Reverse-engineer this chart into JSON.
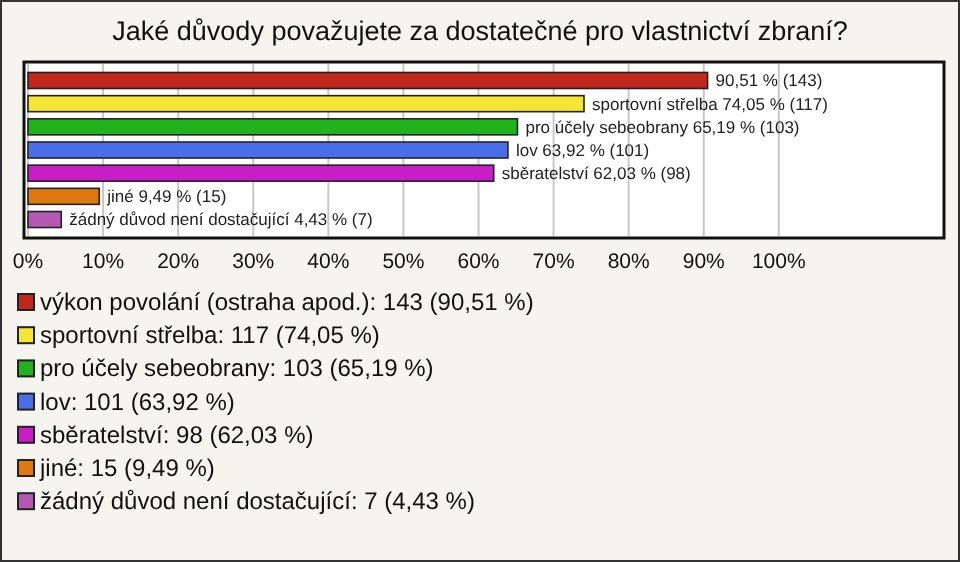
{
  "chart_data": {
    "type": "bar",
    "orientation": "horizontal",
    "title": "Jaké důvody považujete za dostatečné pro vlastnictví zbraní?",
    "categories": [
      null,
      null,
      null,
      null,
      null,
      null,
      null
    ],
    "xlim": [
      0,
      122
    ],
    "xticks": [
      {
        "value": 0,
        "label": "0%"
      },
      {
        "value": 10,
        "label": "10%"
      },
      {
        "value": 20,
        "label": "20%"
      },
      {
        "value": 30,
        "label": "30%"
      },
      {
        "value": 40,
        "label": "40%"
      },
      {
        "value": 50,
        "label": "50%"
      },
      {
        "value": 60,
        "label": "60%"
      },
      {
        "value": 70,
        "label": "70%"
      },
      {
        "value": 80,
        "label": "80%"
      },
      {
        "value": 90,
        "label": "90%"
      },
      {
        "value": 100,
        "label": "100%"
      }
    ],
    "grid": "x",
    "legend": "bottom",
    "series": [
      {
        "name": "výkon povolání (ostraha apod.): 143 (90,51 %)",
        "color": "#c0281c",
        "values": [
          90.51,
          null,
          null,
          null,
          null,
          null,
          null
        ],
        "value_labels": [
          "90,51 % (143)",
          null,
          null,
          null,
          null,
          null,
          null
        ]
      },
      {
        "name": "sportovní střelba: 117 (74,05 %)",
        "color": "#f5e633",
        "values": [
          null,
          74.05,
          null,
          null,
          null,
          null,
          null
        ],
        "value_labels": [
          null,
          "sportovní střelba 74,05 % (117)",
          null,
          null,
          null,
          null,
          null
        ]
      },
      {
        "name": "pro účely sebeobrany: 103 (65,19 %)",
        "color": "#22b21e",
        "values": [
          null,
          null,
          65.19,
          null,
          null,
          null,
          null
        ],
        "value_labels": [
          null,
          null,
          "pro účely sebeobrany 65,19 % (103)",
          null,
          null,
          null,
          null
        ]
      },
      {
        "name": "lov: 101 (63,92 %)",
        "color": "#4a6ee8",
        "values": [
          null,
          null,
          null,
          63.92,
          null,
          null,
          null
        ],
        "value_labels": [
          null,
          null,
          null,
          "lov 63,92 % (101)",
          null,
          null,
          null
        ]
      },
      {
        "name": "sběratelství: 98 (62,03 %)",
        "color": "#c81ec8",
        "values": [
          null,
          null,
          null,
          null,
          62.03,
          null,
          null
        ],
        "value_labels": [
          null,
          null,
          null,
          null,
          "sběratelství 62,03 % (98)",
          null,
          null
        ]
      },
      {
        "name": "jiné: 15 (9,49 %)",
        "color": "#e0780f",
        "values": [
          null,
          null,
          null,
          null,
          null,
          9.49,
          null
        ],
        "value_labels": [
          null,
          null,
          null,
          null,
          null,
          "jiné 9,49 % (15)",
          null
        ]
      },
      {
        "name": "žádný důvod není dostačující: 7 (4,43 %)",
        "color": "#b45ab4",
        "values": [
          null,
          null,
          null,
          null,
          null,
          null,
          4.43
        ],
        "value_labels": [
          null,
          null,
          null,
          null,
          null,
          null,
          "žádný důvod není dostačující 4,43 % (7)"
        ]
      }
    ]
  }
}
